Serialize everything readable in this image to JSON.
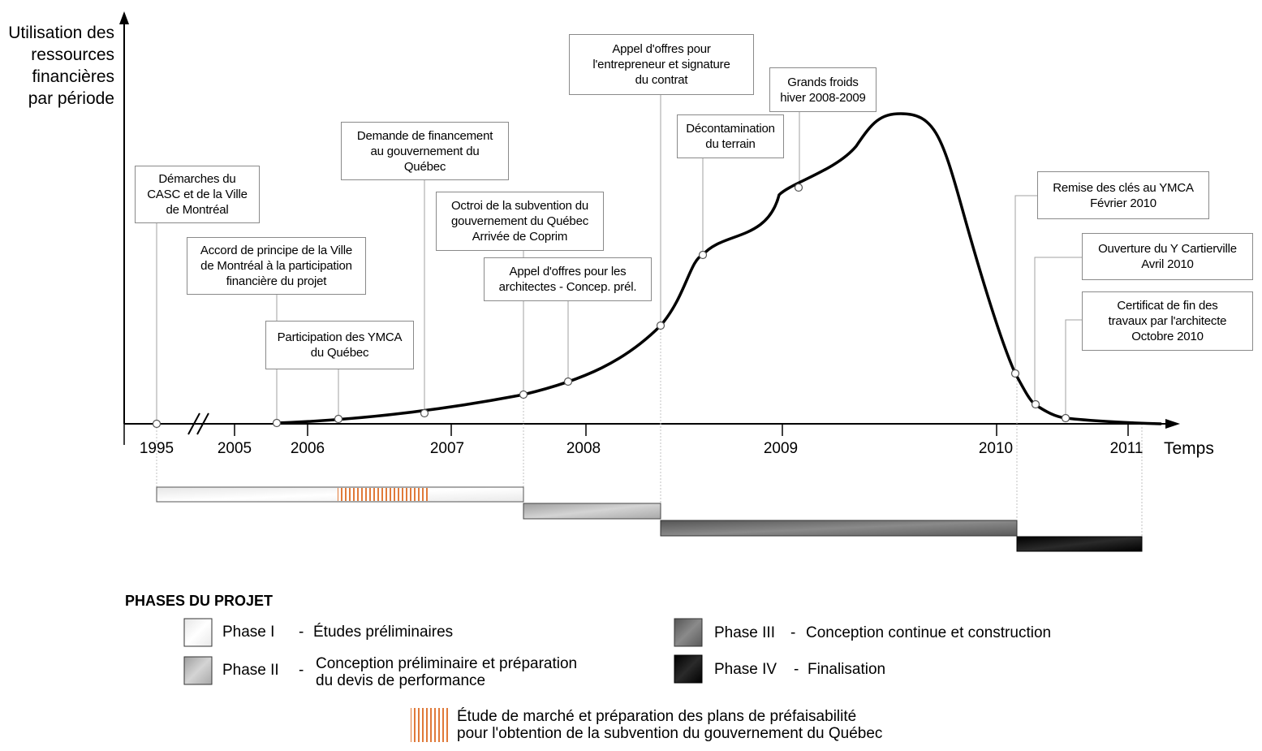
{
  "axes": {
    "y_title": "Utilisation des\nressources\nfinancières\npar période",
    "x_title": "Temps"
  },
  "years": [
    "1995",
    "2005",
    "2006",
    "2007",
    "2008",
    "2009",
    "2010",
    "2011"
  ],
  "callouts": {
    "casc": "Démarches du\nCASC et de la Ville\nde Montréal",
    "accord": "Accord de principe de la Ville\nde Montréal à la participation\nfinancière du projet",
    "ymca_quebec": "Participation des YMCA\ndu Québec",
    "demande": "Demande de financement\nau gouvernement du\nQuébec",
    "octroi": "Octroi de la subvention du\ngouvernement du Québec\nArrivée de Coprim",
    "appel_arch": "Appel d'offres pour les\narchitectes - Concep. prél.",
    "appel_entr": "Appel d'offres pour\nl'entrepreneur et signature\ndu contrat",
    "decont": "Décontamination\ndu terrain",
    "froids": "Grands froids\nhiver 2008-2009",
    "remise": "Remise des clés au YMCA\nFévrier 2010",
    "ouverture": "Ouverture du Y Cartierville\nAvril 2010",
    "certificat": "Certificat de fin des\ntravaux par l'architecte\nOctobre 2010"
  },
  "legend": {
    "title": "PHASES DU PROJET",
    "phase1_name": "Phase I",
    "phase1_desc": "Études préliminaires",
    "phase2_name": "Phase II",
    "phase2_desc": "Conception préliminaire et préparation\ndu devis de performance",
    "phase3_name": "Phase III",
    "phase3_desc": "Conception continue et construction",
    "phase4_name": "Phase IV",
    "phase4_desc": "Finalisation",
    "hatch_desc": "Étude de marché et préparation des plans de préfaisabilité\npour l'obtention de la subvention du gouvernement du Québec",
    "dash": "-"
  },
  "colors": {
    "curve": "#000000",
    "hatch": "#e07a3a",
    "phase1": "#f2f2f2",
    "phase2": "#bdbdbd",
    "phase3": "#707070",
    "phase4": "#111111"
  }
}
